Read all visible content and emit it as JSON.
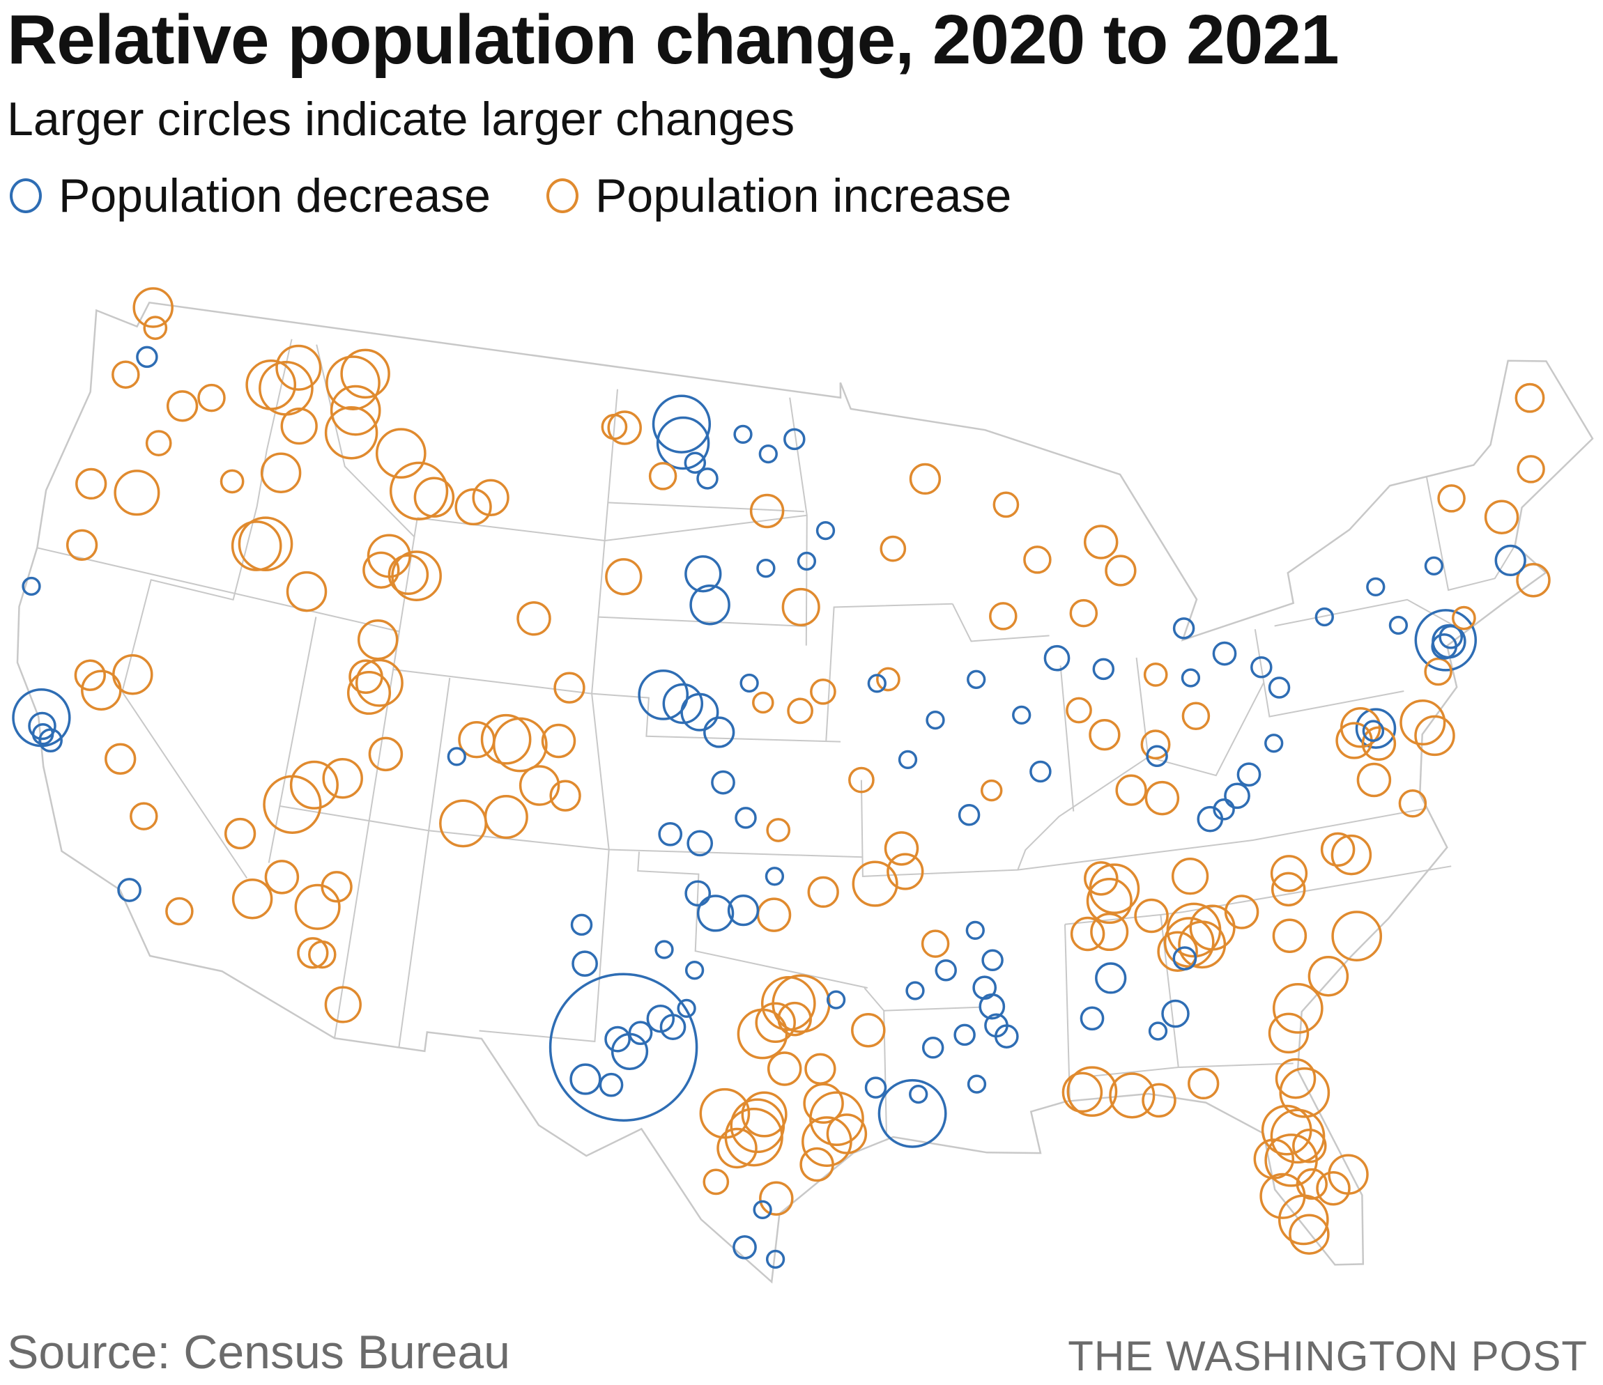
{
  "header": {
    "title": "Relative population change, 2020 to 2021",
    "subtitle": "Larger circles indicate larger changes"
  },
  "legend": {
    "decrease_label": "Population decrease",
    "increase_label": "Population increase"
  },
  "footer": {
    "source": "Source: Census Bureau",
    "credit": "THE WASHINGTON POST"
  },
  "colors": {
    "decrease": "#2e6db4",
    "increase": "#e08a2e",
    "borders": "#c8c8c8"
  },
  "chart_data": {
    "type": "scatter",
    "title": "Relative population change, 2020 to 2021",
    "encoding": "proportional circles at [longitude, latitude, relative change %]; negative = decrease (blue), positive = increase (orange)",
    "points": [
      [
        -122.4,
        37.8,
        -3.5
      ],
      [
        -122.3,
        37.6,
        -0.6
      ],
      [
        -122.2,
        37.4,
        -0.3
      ],
      [
        -121.9,
        37.3,
        -0.4
      ],
      [
        -74,
        40.75,
        -4
      ],
      [
        -73.9,
        40.7,
        -1
      ],
      [
        -74.1,
        40.6,
        -0.5
      ],
      [
        -73.8,
        40.8,
        -0.4
      ],
      [
        -77,
        38.9,
        -1.5
      ],
      [
        -77.1,
        38.85,
        -0.3
      ],
      [
        -71.1,
        42.35,
        -0.8
      ],
      [
        -101.4,
        48.2,
        -3.5
      ],
      [
        -101.3,
        47.7,
        -2.8
      ],
      [
        -100.8,
        47.2,
        -0.3
      ],
      [
        -100.3,
        46.8,
        -0.3
      ],
      [
        -99,
        48,
        -0.2
      ],
      [
        -98,
        47.5,
        -0.2
      ],
      [
        -97,
        47.9,
        -0.3
      ],
      [
        -100.3,
        44.3,
        -1.2
      ],
      [
        -100,
        43.5,
        -1.5
      ],
      [
        -98,
        44.5,
        -0.2
      ],
      [
        -101.5,
        41.1,
        -2.5
      ],
      [
        -100.8,
        40.9,
        -1.5
      ],
      [
        -100.2,
        40.7,
        -1.3
      ],
      [
        -99.5,
        40.2,
        -0.8
      ],
      [
        -98.5,
        41.5,
        -0.2
      ],
      [
        -99.3,
        38.9,
        -0.4
      ],
      [
        -98.5,
        38,
        -0.3
      ],
      [
        -101,
        37.5,
        -0.4
      ],
      [
        -100,
        37.3,
        -0.5
      ],
      [
        -100,
        36,
        -0.5
      ],
      [
        -99.4,
        35.5,
        -1.2
      ],
      [
        -98.5,
        35.6,
        -0.8
      ],
      [
        -97.5,
        36.5,
        -0.2
      ],
      [
        -102.1,
        31.9,
        -26
      ],
      [
        -102.3,
        32.1,
        -0.5
      ],
      [
        -101.9,
        31.8,
        -1.2
      ],
      [
        -101.6,
        32.3,
        -0.4
      ],
      [
        -103.2,
        31,
        -0.8
      ],
      [
        -102.4,
        30.9,
        -0.4
      ],
      [
        -101,
        32.7,
        -0.6
      ],
      [
        -100.6,
        32.5,
        -0.5
      ],
      [
        -100.2,
        33,
        -0.2
      ],
      [
        -101,
        34.5,
        -0.2
      ],
      [
        -100,
        34,
        -0.2
      ],
      [
        -93.2,
        30.3,
        -5
      ],
      [
        -93,
        30.8,
        -0.2
      ],
      [
        -92.5,
        32,
        -0.3
      ],
      [
        -91.5,
        32.3,
        -0.3
      ],
      [
        -91.2,
        31,
        -0.2
      ],
      [
        -90.5,
        32.5,
        -0.4
      ],
      [
        -90.8,
        33.5,
        -0.4
      ],
      [
        -90.5,
        34.2,
        -0.3
      ],
      [
        -90.6,
        33,
        -0.5
      ],
      [
        -90.2,
        32.2,
        -0.4
      ],
      [
        -92,
        34,
        -0.3
      ],
      [
        -91,
        35,
        -0.2
      ],
      [
        -93,
        33.5,
        -0.2
      ],
      [
        -87.5,
        32.5,
        -0.4
      ],
      [
        -86.8,
        33.5,
        -0.8
      ],
      [
        -85.5,
        32,
        -0.2
      ],
      [
        -84.4,
        33.8,
        -0.4
      ],
      [
        -84.9,
        32.4,
        -0.6
      ],
      [
        -89,
        40.5,
        -0.2
      ],
      [
        -88.5,
        39,
        -0.3
      ],
      [
        -90.5,
        41.5,
        -0.2
      ],
      [
        -87.6,
        41.9,
        -0.5
      ],
      [
        -86,
        41.5,
        -0.3
      ],
      [
        -84.5,
        39.1,
        -0.3
      ],
      [
        -83,
        41,
        -0.2
      ],
      [
        -81.7,
        41.5,
        -0.4
      ],
      [
        -80.5,
        41,
        -0.3
      ],
      [
        -80,
        40.4,
        -0.3
      ],
      [
        -82,
        37.8,
        -0.5
      ],
      [
        -81.5,
        38.3,
        -0.4
      ],
      [
        -83,
        37.3,
        -0.5
      ],
      [
        -82.5,
        37.5,
        -0.3
      ],
      [
        -80.5,
        39,
        -0.2
      ],
      [
        -83,
        42.3,
        -0.3
      ],
      [
        -78,
        42,
        -0.2
      ],
      [
        -76,
        42.5,
        -0.2
      ],
      [
        -75.5,
        41.4,
        -0.2
      ],
      [
        -73.8,
        42.7,
        -0.2
      ],
      [
        -94,
        41.5,
        -0.2
      ],
      [
        -92,
        40.5,
        -0.2
      ],
      [
        -93,
        39.5,
        -0.2
      ],
      [
        -91,
        38,
        -0.3
      ],
      [
        -95.8,
        45.5,
        -0.2
      ],
      [
        -96.5,
        44.7,
        -0.2
      ],
      [
        -94.3,
        31,
        -0.3
      ],
      [
        -95.5,
        33.3,
        -0.2
      ],
      [
        -97.7,
        27.8,
        -0.2
      ],
      [
        -98.2,
        26.8,
        -0.4
      ],
      [
        -97.3,
        26.5,
        -0.2
      ],
      [
        -103.7,
        35,
        -0.3
      ],
      [
        -103.5,
        34,
        -0.5
      ],
      [
        -108.4,
        39,
        -0.2
      ],
      [
        -124,
        41,
        -0.2
      ],
      [
        -118.2,
        34.05,
        -0.4
      ],
      [
        -122.3,
        47.6,
        -0.3
      ],
      [
        -122.6,
        48.9,
        1.5
      ],
      [
        -122.3,
        48.4,
        0.4
      ],
      [
        -117.4,
        47.7,
        2.5
      ],
      [
        -116.8,
        47.7,
        3
      ],
      [
        -116.5,
        48.3,
        2
      ],
      [
        -116,
        46.8,
        1.2
      ],
      [
        -116.3,
        45.5,
        1.5
      ],
      [
        -114,
        47.5,
        2.5
      ],
      [
        -114,
        46.9,
        2.8
      ],
      [
        -111.1,
        45.7,
        3.5
      ],
      [
        -112,
        46.6,
        2.5
      ],
      [
        -109,
        45.5,
        1.2
      ],
      [
        -110.5,
        45.6,
        1.5
      ],
      [
        -114.3,
        48.2,
        3
      ],
      [
        -113.9,
        48.5,
        2.4
      ],
      [
        -119.5,
        47,
        0.6
      ],
      [
        -120.5,
        46.6,
        0.8
      ],
      [
        -122.9,
        47,
        0.6
      ],
      [
        -116.3,
        43.6,
        3
      ],
      [
        -116.6,
        43.5,
        2.5
      ],
      [
        -114.5,
        42.6,
        1.5
      ],
      [
        -112,
        43.5,
        1.2
      ],
      [
        -111.8,
        43.9,
        1.8
      ],
      [
        -111,
        43.5,
        1.5
      ],
      [
        -121.3,
        44.1,
        2
      ],
      [
        -123,
        44,
        0.8
      ],
      [
        -122.7,
        42.4,
        0.8
      ],
      [
        -121,
        45.5,
        0.5
      ],
      [
        -118,
        45,
        0.4
      ],
      [
        -111.9,
        40.7,
        1
      ],
      [
        -111.7,
        40.3,
        1.8
      ],
      [
        -111.7,
        41.7,
        1.5
      ],
      [
        -113.6,
        37.1,
        3.5
      ],
      [
        -111.4,
        40.6,
        2.2
      ],
      [
        -110.8,
        38.8,
        1
      ],
      [
        -112.1,
        38,
        1.5
      ],
      [
        -113,
        37.7,
        2.3
      ],
      [
        -105,
        39.7,
        1
      ],
      [
        -106.8,
        39.6,
        2.5
      ],
      [
        -106.3,
        39.5,
        3
      ],
      [
        -107.9,
        37.3,
        2.2
      ],
      [
        -105.5,
        38.5,
        1.5
      ],
      [
        -104.6,
        38.3,
        0.8
      ],
      [
        -106.5,
        37.6,
        1.8
      ],
      [
        -107.8,
        39.5,
        1.2
      ],
      [
        -115.1,
        36.1,
        0.8
      ],
      [
        -119.8,
        39.5,
        1.5
      ],
      [
        -112.2,
        34.6,
        2
      ],
      [
        -111.7,
        35.2,
        0.8
      ],
      [
        -113.5,
        35.2,
        1
      ],
      [
        -114.3,
        34.5,
        1.5
      ],
      [
        -110.9,
        32.2,
        1.2
      ],
      [
        -112.1,
        33.4,
        0.8
      ],
      [
        -111.8,
        33.4,
        0.6
      ],
      [
        -120.7,
        38.9,
        1.5
      ],
      [
        -121.2,
        39.2,
        0.8
      ],
      [
        -118.3,
        36,
        0.6
      ],
      [
        -116.5,
        33.8,
        0.6
      ],
      [
        -119.5,
        37.3,
        0.8
      ],
      [
        -104.8,
        41.1,
        0.8
      ],
      [
        -106.3,
        42.8,
        1
      ],
      [
        -108.4,
        45.8,
        1.2
      ],
      [
        -110.7,
        43.5,
        2.5
      ],
      [
        -104,
        48,
        0.5
      ],
      [
        -97.7,
        30.3,
        2
      ],
      [
        -97.9,
        30,
        3
      ],
      [
        -98.5,
        29.4,
        1.5
      ],
      [
        -98,
        29.7,
        3.5
      ],
      [
        -98.9,
        30.3,
        2.5
      ],
      [
        -96.8,
        32.8,
        1
      ],
      [
        -97,
        33.2,
        3
      ],
      [
        -96.6,
        33.2,
        3.5
      ],
      [
        -97.4,
        32.7,
        1.5
      ],
      [
        -97.8,
        32.4,
        2.5
      ],
      [
        -95.5,
        30.2,
        3
      ],
      [
        -95.8,
        29.6,
        2.5
      ],
      [
        -95.2,
        29.8,
        1.5
      ],
      [
        -95.9,
        30.6,
        1.5
      ],
      [
        -96.1,
        29,
        1
      ],
      [
        -97.1,
        31.5,
        1
      ],
      [
        -97.3,
        28.1,
        1
      ],
      [
        -99.1,
        28.5,
        0.5
      ],
      [
        -94.5,
        32.5,
        1
      ],
      [
        -96,
        31.5,
        0.8
      ],
      [
        -97.5,
        35.5,
        1
      ],
      [
        -95.9,
        36.1,
        0.8
      ],
      [
        -94.2,
        36.3,
        2
      ],
      [
        -93.3,
        37.2,
        1
      ],
      [
        -93.2,
        36.6,
        1.2
      ],
      [
        -92.3,
        34.7,
        0.6
      ],
      [
        -86.8,
        36.1,
        1
      ],
      [
        -86.4,
        35.8,
        2.5
      ],
      [
        -86.6,
        35.5,
        2
      ],
      [
        -85.3,
        35,
        1
      ],
      [
        -83.9,
        35.9,
        1.2
      ],
      [
        -84.2,
        34.2,
        2.5
      ],
      [
        -84,
        34.5,
        3
      ],
      [
        -83.8,
        34.1,
        2.2
      ],
      [
        -84.6,
        34,
        1.5
      ],
      [
        -83.4,
        34.5,
        2
      ],
      [
        -82.4,
        34.8,
        1
      ],
      [
        -81,
        34,
        1
      ],
      [
        -80.8,
        35.2,
        1
      ],
      [
        -80.7,
        35.6,
        1.2
      ],
      [
        -78.6,
        35.8,
        1.5
      ],
      [
        -79,
        36,
        1
      ],
      [
        -78.9,
        33.7,
        2.5
      ],
      [
        -80,
        32.8,
        1.5
      ],
      [
        -81.1,
        32.1,
        2.5
      ],
      [
        -81.5,
        31.5,
        1.5
      ],
      [
        -87.4,
        34.7,
        1
      ],
      [
        -86.7,
        34.7,
        1.3
      ],
      [
        -88,
        30.6,
        1.5
      ],
      [
        -87.7,
        30.6,
        2.5
      ],
      [
        -86.5,
        30.4,
        2
      ],
      [
        -85.7,
        30.2,
        1
      ],
      [
        -84.3,
        30.5,
        0.8
      ],
      [
        -81.4,
        28.5,
        1
      ],
      [
        -81.7,
        28.8,
        3
      ],
      [
        -82,
        29,
        2.5
      ],
      [
        -81.5,
        30.3,
        1.5
      ],
      [
        -81.3,
        29.9,
        2.5
      ],
      [
        -82.5,
        28.3,
        1.5
      ],
      [
        -82.4,
        27.3,
        2
      ],
      [
        -81.9,
        26.6,
        2.5
      ],
      [
        -81.8,
        26.2,
        1.5
      ],
      [
        -80.9,
        27.3,
        1
      ],
      [
        -80.4,
        27.6,
        1.5
      ],
      [
        -82,
        28.2,
        2.8
      ],
      [
        -81.5,
        27.5,
        0.8
      ],
      [
        -77.5,
        39,
        1.5
      ],
      [
        -77.8,
        38.7,
        1.2
      ],
      [
        -75.4,
        38.8,
        2
      ],
      [
        -75.1,
        38.4,
        1.5
      ],
      [
        -77.4,
        37.6,
        1
      ],
      [
        -76.3,
        36.8,
        0.6
      ],
      [
        -77,
        38.5,
        1
      ],
      [
        -70.5,
        41.7,
        1
      ],
      [
        -71,
        43.5,
        1
      ],
      [
        -69.5,
        44.5,
        0.6
      ],
      [
        -72.6,
        44.3,
        0.6
      ],
      [
        -73.2,
        41.2,
        0.4
      ],
      [
        -74.5,
        40,
        0.6
      ],
      [
        -68.8,
        46.3,
        0.7
      ],
      [
        -89.4,
        43.1,
        0.6
      ],
      [
        -88,
        44.5,
        0.6
      ],
      [
        -85.6,
        44.8,
        1
      ],
      [
        -85,
        44,
        0.8
      ],
      [
        -86.5,
        43,
        0.6
      ],
      [
        -93.3,
        45,
        0.5
      ],
      [
        -92,
        46.8,
        0.8
      ],
      [
        -89,
        46,
        0.5
      ],
      [
        -95.9,
        41.3,
        0.5
      ],
      [
        -93.6,
        41.6,
        0.4
      ],
      [
        -86.2,
        39.8,
        0.8
      ],
      [
        -85.5,
        38.3,
        0.8
      ],
      [
        -84.5,
        38,
        1
      ],
      [
        -84.5,
        39.4,
        0.7
      ],
      [
        -83,
        40,
        0.6
      ],
      [
        -84.2,
        41.2,
        0.4
      ],
      [
        -87,
        40.5,
        0.5
      ],
      [
        -90.2,
        38.6,
        0.3
      ],
      [
        -94.6,
        39,
        0.5
      ],
      [
        -97.4,
        37.7,
        0.4
      ],
      [
        -96.7,
        40.8,
        0.5
      ],
      [
        -98,
        41,
        0.3
      ],
      [
        -103.6,
        48,
        1
      ],
      [
        -103.2,
        44.1,
        1.2
      ],
      [
        -96.7,
        43.5,
        1.3
      ],
      [
        -98,
        46,
        1
      ],
      [
        -102,
        46.8,
        0.6
      ]
    ]
  }
}
